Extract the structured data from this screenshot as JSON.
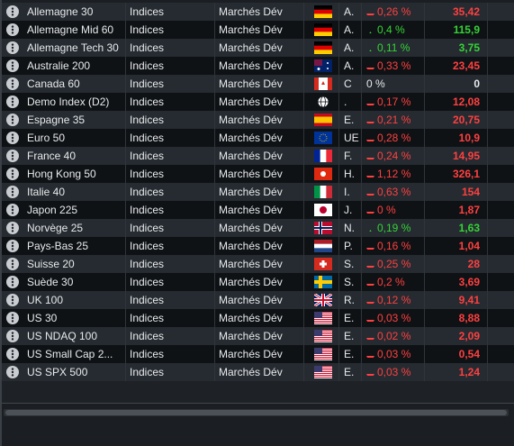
{
  "table": {
    "rows": [
      {
        "name": "Allemagne 30",
        "category": "Indices",
        "market": "Marchés Dév",
        "code": "A.",
        "change": "0,26 %",
        "value": "35,42",
        "trend": "down"
      },
      {
        "name": "Allemagne Mid 60",
        "category": "Indices",
        "market": "Marchés Dév",
        "code": "A.",
        "change": "0,4 %",
        "value": "115,9",
        "trend": "up"
      },
      {
        "name": "Allemagne Tech 30",
        "category": "Indices",
        "market": "Marchés Dév",
        "code": "A.",
        "change": "0,11 %",
        "value": "3,75",
        "trend": "up"
      },
      {
        "name": "Australie 200",
        "category": "Indices",
        "market": "Marchés Dév",
        "code": "A.",
        "change": "0,33 %",
        "value": "23,45",
        "trend": "down"
      },
      {
        "name": "Canada 60",
        "category": "Indices",
        "market": "Marchés Dév",
        "code": "C",
        "change": "0 %",
        "value": "0",
        "trend": "flat"
      },
      {
        "name": "Demo Index (D2)",
        "category": "Indices",
        "market": "Marchés Dév",
        "code": ".",
        "change": "0,17 %",
        "value": "12,08",
        "trend": "down"
      },
      {
        "name": "Espagne 35",
        "category": "Indices",
        "market": "Marchés Dév",
        "code": "E.",
        "change": "0,21 %",
        "value": "20,75",
        "trend": "down"
      },
      {
        "name": "Euro 50",
        "category": "Indices",
        "market": "Marchés Dév",
        "code": "UE",
        "change": "0,28 %",
        "value": "10,9",
        "trend": "down"
      },
      {
        "name": "France 40",
        "category": "Indices",
        "market": "Marchés Dév",
        "code": "F.",
        "change": "0,24 %",
        "value": "14,95",
        "trend": "down"
      },
      {
        "name": "Hong Kong 50",
        "category": "Indices",
        "market": "Marchés Dév",
        "code": "H.",
        "change": "1,12 %",
        "value": "326,1",
        "trend": "down"
      },
      {
        "name": "Italie 40",
        "category": "Indices",
        "market": "Marchés Dév",
        "code": "I.",
        "change": "0,63 %",
        "value": "154",
        "trend": "down"
      },
      {
        "name": "Japon 225",
        "category": "Indices",
        "market": "Marchés Dév",
        "code": "J.",
        "change": "0 %",
        "value": "1,87",
        "trend": "down"
      },
      {
        "name": "Norvège 25",
        "category": "Indices",
        "market": "Marchés Dév",
        "code": "N.",
        "change": "0,19 %",
        "value": "1,63",
        "trend": "up"
      },
      {
        "name": "Pays-Bas 25",
        "category": "Indices",
        "market": "Marchés Dév",
        "code": "P.",
        "change": "0,16 %",
        "value": "1,04",
        "trend": "down"
      },
      {
        "name": "Suisse 20",
        "category": "Indices",
        "market": "Marchés Dév",
        "code": "S.",
        "change": "0,25 %",
        "value": "28",
        "trend": "down"
      },
      {
        "name": "Suède 30",
        "category": "Indices",
        "market": "Marchés Dév",
        "code": "S.",
        "change": "0,2 %",
        "value": "3,69",
        "trend": "down"
      },
      {
        "name": "UK 100",
        "category": "Indices",
        "market": "Marchés Dév",
        "code": "R.",
        "change": "0,12 %",
        "value": "9,41",
        "trend": "down"
      },
      {
        "name": "US 30",
        "category": "Indices",
        "market": "Marchés Dév",
        "code": "E.",
        "change": "0,03 %",
        "value": "8,88",
        "trend": "down"
      },
      {
        "name": "US NDAQ 100",
        "category": "Indices",
        "market": "Marchés Dév",
        "code": "E.",
        "change": "0,02 %",
        "value": "2,09",
        "trend": "down"
      },
      {
        "name": "US Small Cap 2...",
        "category": "Indices",
        "market": "Marchés Dév",
        "code": "E.",
        "change": "0,03 %",
        "value": "0,54",
        "trend": "down"
      },
      {
        "name": "US SPX 500",
        "category": "Indices",
        "market": "Marchés Dév",
        "code": "E.",
        "change": "0,03 %",
        "value": "1,24",
        "trend": "down"
      }
    ]
  }
}
